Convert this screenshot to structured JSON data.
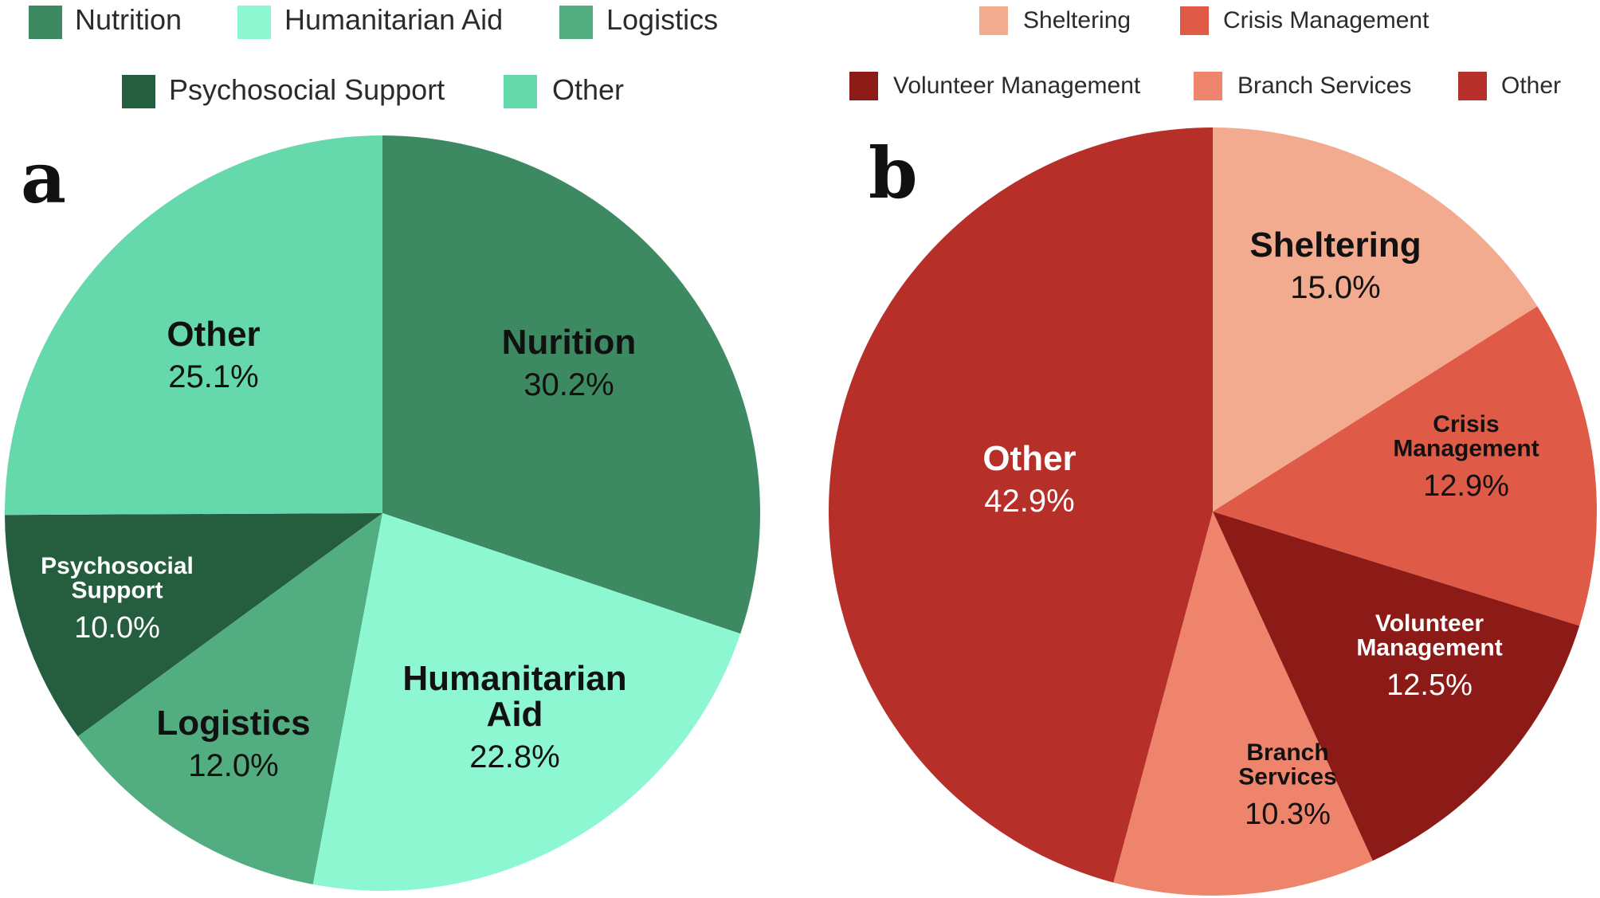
{
  "chart_data": [
    {
      "type": "pie",
      "panel_label": "a",
      "legend": [
        {
          "label": "Nutrition",
          "color": "#3d8a62"
        },
        {
          "label": "Humanitarian Aid",
          "color": "#8df7d2"
        },
        {
          "label": "Logistics",
          "color": "#52ad80"
        },
        {
          "label": "Psychosocial Support",
          "color": "#255e3e"
        },
        {
          "label": "Other",
          "color": "#65d9ab"
        }
      ],
      "slices": [
        {
          "label_lines": [
            "Nurition"
          ],
          "value": 30.2,
          "value_text": "30.2%",
          "color": "#3d8a62",
          "text_color": "#111111"
        },
        {
          "label_lines": [
            "Humanitarian",
            "Aid"
          ],
          "value": 22.8,
          "value_text": "22.8%",
          "color": "#8df7d2",
          "text_color": "#111111"
        },
        {
          "label_lines": [
            "Logistics"
          ],
          "value": 12.0,
          "value_text": "12.0%",
          "color": "#52ad80",
          "text_color": "#111111"
        },
        {
          "label_lines": [
            "Psychosocial",
            "Support"
          ],
          "value": 10.0,
          "value_text": "10.0%",
          "color": "#255e3e",
          "text_color": "#ffffff"
        },
        {
          "label_lines": [
            "Other"
          ],
          "value": 25.1,
          "value_text": "25.1%",
          "color": "#65d9ab",
          "text_color": "#111111"
        }
      ]
    },
    {
      "type": "pie",
      "panel_label": "b",
      "legend": [
        {
          "label": "Sheltering",
          "color": "#f2ab8f"
        },
        {
          "label": "Crisis Management",
          "color": "#e05a48"
        },
        {
          "label": "Volunteer Management",
          "color": "#8c1b17"
        },
        {
          "label": "Branch Services",
          "color": "#ed846b"
        },
        {
          "label": "Other",
          "color": "#b72f29"
        }
      ],
      "slices": [
        {
          "label_lines": [
            "Sheltering"
          ],
          "value": 15.0,
          "value_text": "15.0%",
          "color": "#f2ab8f",
          "text_color": "#111111"
        },
        {
          "label_lines": [
            "Crisis",
            "Management"
          ],
          "value": 12.9,
          "value_text": "12.9%",
          "color": "#e05a48",
          "text_color": "#111111"
        },
        {
          "label_lines": [
            "Volunteer",
            "Management"
          ],
          "value": 12.5,
          "value_text": "12.5%",
          "color": "#8c1b17",
          "text_color": "#ffffff"
        },
        {
          "label_lines": [
            "Branch",
            "Services"
          ],
          "value": 10.3,
          "value_text": "10.3%",
          "color": "#ed846b",
          "text_color": "#111111"
        },
        {
          "label_lines": [
            "Other"
          ],
          "value": 42.9,
          "value_text": "42.9%",
          "color": "#b72f29",
          "text_color": "#ffffff"
        }
      ]
    }
  ]
}
